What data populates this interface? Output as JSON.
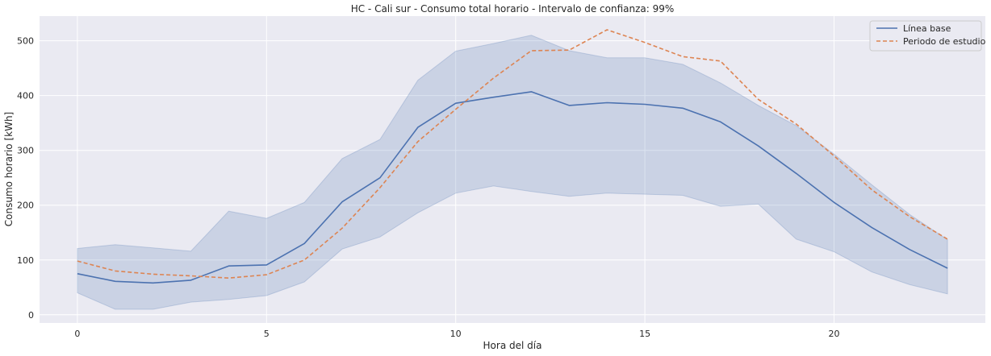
{
  "chart_data": {
    "type": "line",
    "title": "HC - Cali sur - Consumo total horario - Intervalo de confianza: 99%",
    "xlabel": "Hora del día",
    "ylabel": "Consumo horario [kWh]",
    "xlim": [
      -1,
      24
    ],
    "ylim": [
      -15,
      545
    ],
    "xticks": [
      0,
      5,
      10,
      15,
      20
    ],
    "yticks": [
      0,
      100,
      200,
      300,
      400,
      500
    ],
    "grid": true,
    "legend_position": "top-right",
    "x": [
      0,
      1,
      2,
      3,
      4,
      5,
      6,
      7,
      8,
      9,
      10,
      11,
      12,
      13,
      14,
      15,
      16,
      17,
      18,
      19,
      20,
      21,
      22,
      23
    ],
    "series": [
      {
        "name": "Línea base",
        "color": "#4c72b0",
        "style": "solid",
        "values": [
          75,
          61,
          58,
          63,
          89,
          91,
          130,
          206,
          250,
          342,
          386,
          397,
          407,
          382,
          387,
          384,
          377,
          352,
          308,
          258,
          205,
          159,
          119,
          85
        ],
        "ci_lower": [
          40,
          10,
          10,
          23,
          28,
          35,
          60,
          120,
          142,
          186,
          222,
          235,
          225,
          216,
          222,
          220,
          218,
          198,
          202,
          138,
          115,
          78,
          55,
          38
        ],
        "ci_upper": [
          121,
          128,
          122,
          116,
          189,
          176,
          205,
          285,
          320,
          428,
          481,
          495,
          510,
          482,
          469,
          469,
          457,
          423,
          382,
          345,
          293,
          237,
          183,
          137
        ]
      },
      {
        "name": "Periodo de estudio",
        "color": "#dd8452",
        "style": "dashed",
        "values": [
          98,
          80,
          74,
          71,
          67,
          73,
          100,
          158,
          232,
          316,
          375,
          432,
          482,
          483,
          520,
          497,
          471,
          463,
          393,
          348,
          290,
          228,
          179,
          138
        ]
      }
    ]
  }
}
